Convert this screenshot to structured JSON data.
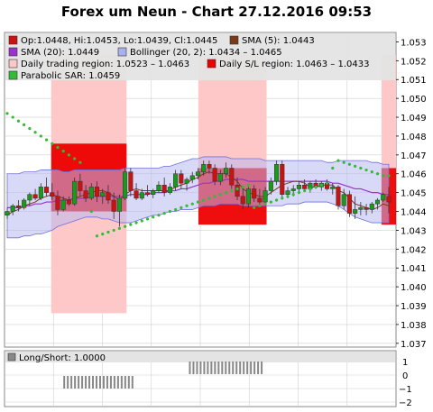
{
  "title": "Forex um Neun - Chart 27.12.2016 09:53",
  "legend": {
    "ohlc": "Op:1.0448, Hi:1.0453, Lo:1.0439, Cl:1.0445",
    "sma5": "SMA (5): 1.0443",
    "sma20": "SMA (20): 1.0449",
    "bollinger": "Bollinger (20, 2): 1.0434 – 1.0465",
    "daily_region": "Daily trading region: 1.0523 – 1.0463",
    "daily_sl": "Daily S/L region: 1.0463 – 1.0433",
    "sar": "Parabolic SAR: 1.0459"
  },
  "colors": {
    "up": "#1a9a1a",
    "down": "#cc1111",
    "sma5": "#7a3a1a",
    "sma20": "#9933cc",
    "bollinger": "#b8b8f0",
    "daily_region": "#ffc8c8",
    "daily_sl": "#ee0000",
    "sar": "#33bb33",
    "grid": "#d0d0d0",
    "short_bars": "#888888"
  },
  "sub_panel": {
    "label": "Long/Short: 1.0000",
    "ticks": [
      "1",
      "0",
      "−1",
      "−2"
    ]
  },
  "chart_data": {
    "type": "candlestick",
    "ylim": [
      1.0368,
      1.0535
    ],
    "y_ticks": [
      "1.053",
      "1.052",
      "1.051",
      "1.050",
      "1.049",
      "1.048",
      "1.047",
      "1.046",
      "1.045",
      "1.044",
      "1.043",
      "1.042",
      "1.041",
      "1.040",
      "1.039",
      "1.038",
      "1.037"
    ],
    "candles": [
      [
        1.0438,
        1.0442,
        1.0436,
        1.044
      ],
      [
        1.044,
        1.0444,
        1.0438,
        1.0443
      ],
      [
        1.0443,
        1.0446,
        1.044,
        1.0442
      ],
      [
        1.0442,
        1.0447,
        1.0441,
        1.0446
      ],
      [
        1.0446,
        1.045,
        1.0443,
        1.0449
      ],
      [
        1.0449,
        1.0452,
        1.0446,
        1.0447
      ],
      [
        1.0447,
        1.0455,
        1.0446,
        1.0453
      ],
      [
        1.0453,
        1.0458,
        1.0448,
        1.045
      ],
      [
        1.045,
        1.0455,
        1.0446,
        1.0448
      ],
      [
        1.0448,
        1.0451,
        1.0438,
        1.0441
      ],
      [
        1.0441,
        1.0448,
        1.044,
        1.0446
      ],
      [
        1.0446,
        1.0448,
        1.0443,
        1.0444
      ],
      [
        1.0444,
        1.0458,
        1.0443,
        1.0456
      ],
      [
        1.0456,
        1.046,
        1.0448,
        1.0451
      ],
      [
        1.0451,
        1.0454,
        1.0445,
        1.0447
      ],
      [
        1.0447,
        1.0455,
        1.0446,
        1.0453
      ],
      [
        1.0453,
        1.0456,
        1.0445,
        1.0448
      ],
      [
        1.0448,
        1.0452,
        1.0444,
        1.045
      ],
      [
        1.045,
        1.0454,
        1.0444,
        1.0446
      ],
      [
        1.0446,
        1.045,
        1.0436,
        1.044
      ],
      [
        1.044,
        1.0449,
        1.0432,
        1.0447
      ],
      [
        1.0447,
        1.0463,
        1.0446,
        1.0461
      ],
      [
        1.0461,
        1.0463,
        1.0448,
        1.0451
      ],
      [
        1.0451,
        1.0455,
        1.0446,
        1.0447
      ],
      [
        1.0447,
        1.0452,
        1.0446,
        1.045
      ],
      [
        1.045,
        1.0454,
        1.0448,
        1.0449
      ],
      [
        1.0449,
        1.0452,
        1.0447,
        1.0451
      ],
      [
        1.0451,
        1.0456,
        1.045,
        1.0454
      ],
      [
        1.0454,
        1.0458,
        1.0448,
        1.045
      ],
      [
        1.045,
        1.0455,
        1.0449,
        1.0453
      ],
      [
        1.0453,
        1.0462,
        1.0451,
        1.046
      ],
      [
        1.046,
        1.0462,
        1.0452,
        1.0455
      ],
      [
        1.0455,
        1.0458,
        1.0451,
        1.0457
      ],
      [
        1.0457,
        1.0461,
        1.0455,
        1.0459
      ],
      [
        1.0459,
        1.0463,
        1.0457,
        1.0461
      ],
      [
        1.0461,
        1.0467,
        1.0459,
        1.0465
      ],
      [
        1.0465,
        1.0467,
        1.046,
        1.0463
      ],
      [
        1.0463,
        1.0465,
        1.0454,
        1.0456
      ],
      [
        1.0456,
        1.0462,
        1.0454,
        1.046
      ],
      [
        1.046,
        1.0466,
        1.0458,
        1.0463
      ],
      [
        1.0463,
        1.0465,
        1.0452,
        1.0454
      ],
      [
        1.0454,
        1.0458,
        1.0446,
        1.0448
      ],
      [
        1.0448,
        1.0452,
        1.0441,
        1.0444
      ],
      [
        1.0444,
        1.0453,
        1.0442,
        1.0452
      ],
      [
        1.0452,
        1.0454,
        1.0445,
        1.0447
      ],
      [
        1.0447,
        1.0452,
        1.0442,
        1.0445
      ],
      [
        1.0445,
        1.0453,
        1.0443,
        1.0451
      ],
      [
        1.0451,
        1.0458,
        1.0449,
        1.0456
      ],
      [
        1.0456,
        1.0467,
        1.0454,
        1.0465
      ],
      [
        1.0465,
        1.0467,
        1.0447,
        1.0449
      ],
      [
        1.0449,
        1.0453,
        1.0447,
        1.0451
      ],
      [
        1.0451,
        1.0454,
        1.0448,
        1.0452
      ],
      [
        1.0452,
        1.0456,
        1.045,
        1.0454
      ],
      [
        1.0454,
        1.0457,
        1.0451,
        1.0452
      ],
      [
        1.0452,
        1.0456,
        1.045,
        1.0455
      ],
      [
        1.0455,
        1.0457,
        1.0452,
        1.0453
      ],
      [
        1.0453,
        1.0456,
        1.0451,
        1.0455
      ],
      [
        1.0455,
        1.0457,
        1.0451,
        1.0452
      ],
      [
        1.0452,
        1.0455,
        1.0449,
        1.0453
      ],
      [
        1.0453,
        1.0454,
        1.0441,
        1.0443
      ],
      [
        1.0443,
        1.0452,
        1.0441,
        1.0449
      ],
      [
        1.0449,
        1.0451,
        1.0437,
        1.0439
      ],
      [
        1.0439,
        1.0448,
        1.0436,
        1.0441
      ],
      [
        1.0441,
        1.0445,
        1.0438,
        1.0442
      ],
      [
        1.0442,
        1.0444,
        1.0438,
        1.0441
      ],
      [
        1.0441,
        1.0445,
        1.0439,
        1.0444
      ],
      [
        1.0444,
        1.0447,
        1.0441,
        1.0446
      ],
      [
        1.0446,
        1.045,
        1.0445,
        1.0449
      ],
      [
        1.0448,
        1.0453,
        1.0439,
        1.0445
      ]
    ],
    "sma5": [
      1.0438,
      1.044,
      1.0441,
      1.0443,
      1.0444,
      1.0445,
      1.0447,
      1.0448,
      1.0449,
      1.0448,
      1.0447,
      1.0446,
      1.0447,
      1.0448,
      1.0449,
      1.045,
      1.0451,
      1.0451,
      1.045,
      1.0448,
      1.0446,
      1.0449,
      1.0451,
      1.0452,
      1.0451,
      1.0451,
      1.0451,
      1.0451,
      1.0451,
      1.0451,
      1.0453,
      1.0454,
      1.0455,
      1.0457,
      1.0458,
      1.046,
      1.0461,
      1.046,
      1.046,
      1.046,
      1.0458,
      1.0456,
      1.0452,
      1.045,
      1.0449,
      1.0448,
      1.0448,
      1.045,
      1.0452,
      1.0454,
      1.0455,
      1.0456,
      1.0456,
      1.0455,
      1.0453,
      1.0453,
      1.0454,
      1.0454,
      1.0454,
      1.0451,
      1.045,
      1.0447,
      1.0444,
      1.0443,
      1.0442,
      1.0441,
      1.0442,
      1.0444,
      1.0443
    ],
    "sma20": [
      1.0442,
      1.0442,
      1.0442,
      1.0443,
      1.0443,
      1.0444,
      1.0444,
      1.0445,
      1.0445,
      1.0446,
      1.0446,
      1.0446,
      1.0447,
      1.0447,
      1.0447,
      1.0448,
      1.0448,
      1.0448,
      1.0448,
      1.0448,
      1.0448,
      1.0448,
      1.0449,
      1.0449,
      1.0449,
      1.0449,
      1.045,
      1.045,
      1.045,
      1.0451,
      1.0451,
      1.0452,
      1.0452,
      1.0453,
      1.0454,
      1.0455,
      1.0455,
      1.0456,
      1.0456,
      1.0457,
      1.0457,
      1.0457,
      1.0457,
      1.0456,
      1.0456,
      1.0456,
      1.0456,
      1.0456,
      1.0456,
      1.0456,
      1.0456,
      1.0456,
      1.0456,
      1.0456,
      1.0456,
      1.0456,
      1.0456,
      1.0456,
      1.0455,
      1.0455,
      1.0454,
      1.0453,
      1.0452,
      1.0452,
      1.0451,
      1.045,
      1.045,
      1.0449,
      1.0449
    ],
    "bb_upper": [
      1.046,
      1.046,
      1.046,
      1.0461,
      1.0461,
      1.0461,
      1.0462,
      1.0462,
      1.0462,
      1.0462,
      1.0461,
      1.0461,
      1.0462,
      1.0462,
      1.0462,
      1.0462,
      1.0462,
      1.0462,
      1.0462,
      1.0462,
      1.0462,
      1.0463,
      1.0463,
      1.0463,
      1.0463,
      1.0463,
      1.0463,
      1.0463,
      1.0464,
      1.0464,
      1.0465,
      1.0466,
      1.0467,
      1.0468,
      1.0468,
      1.0469,
      1.0469,
      1.0469,
      1.0469,
      1.0469,
      1.0468,
      1.0468,
      1.0468,
      1.0468,
      1.0468,
      1.0468,
      1.0467,
      1.0467,
      1.0467,
      1.0467,
      1.0467,
      1.0467,
      1.0467,
      1.0467,
      1.0467,
      1.0467,
      1.0467,
      1.0466,
      1.0466,
      1.0467,
      1.0467,
      1.0467,
      1.0467,
      1.0467,
      1.0467,
      1.0466,
      1.0466,
      1.0465,
      1.0465
    ],
    "bb_lower": [
      1.0426,
      1.0426,
      1.0426,
      1.0427,
      1.0427,
      1.0428,
      1.0428,
      1.0429,
      1.043,
      1.0432,
      1.0433,
      1.0434,
      1.0435,
      1.0436,
      1.0437,
      1.0437,
      1.0437,
      1.0436,
      1.0436,
      1.0435,
      1.0434,
      1.0434,
      1.0434,
      1.0435,
      1.0436,
      1.0437,
      1.0438,
      1.0438,
      1.0439,
      1.044,
      1.044,
      1.0441,
      1.0441,
      1.0441,
      1.0442,
      1.0443,
      1.0443,
      1.0443,
      1.0444,
      1.0444,
      1.0444,
      1.0444,
      1.0443,
      1.0443,
      1.0443,
      1.0443,
      1.0443,
      1.0443,
      1.0443,
      1.0443,
      1.0444,
      1.0444,
      1.0444,
      1.0445,
      1.0445,
      1.0445,
      1.0445,
      1.0445,
      1.0444,
      1.0443,
      1.0441,
      1.0439,
      1.0437,
      1.0436,
      1.0435,
      1.0434,
      1.0434,
      1.0434,
      1.0434
    ],
    "sar": [
      1.0492,
      1.049,
      1.0488,
      1.0486,
      1.0484,
      1.0482,
      1.048,
      1.0478,
      1.0476,
      1.0474,
      1.0472,
      1.047,
      1.0468,
      1.0466,
      null,
      1.044,
      1.0427,
      1.0428,
      1.0429,
      1.043,
      1.0431,
      1.0432,
      1.0433,
      1.0434,
      1.0435,
      1.0436,
      1.0437,
      1.0438,
      1.0439,
      1.044,
      1.0441,
      1.0442,
      1.0443,
      1.0444,
      1.0445,
      1.0446,
      1.0447,
      1.0448,
      1.0449,
      1.045,
      1.0451,
      1.0452,
      1.0453,
      1.0454,
      1.0442,
      1.0443,
      1.0444,
      1.0445,
      1.0446,
      1.0447,
      1.0448,
      1.0449,
      1.045,
      1.0451,
      1.0452,
      1.0453,
      1.0454,
      1.0455,
      1.0463,
      1.0467,
      1.0466,
      1.0465,
      1.0464,
      1.0463,
      1.0462,
      1.0461,
      1.046,
      1.0459,
      1.0459
    ],
    "daily_regions": [
      {
        "from": 13,
        "to": 34,
        "high": 1.0523,
        "low": 1.0386,
        "sl_high": 1.0476,
        "sl_low": 1.044
      },
      {
        "from": 54,
        "to": 73,
        "high": 1.0523,
        "low": 1.0463,
        "sl_high": 1.0463,
        "sl_low": 1.0433
      },
      {
        "from": 105,
        "to": 112,
        "high": 1.0523,
        "low": 1.0463,
        "sl_high": 1.0463,
        "sl_low": 1.0433
      }
    ],
    "long_short": [
      0,
      0,
      0,
      0,
      0,
      0,
      0,
      0,
      0,
      0,
      0,
      0,
      0,
      0,
      0,
      0,
      -1,
      -1,
      -1,
      -1,
      -1,
      -1,
      -1,
      -1,
      -1,
      -1,
      -1,
      -1,
      -1,
      -1,
      -1,
      -1,
      -1,
      -1,
      -1,
      -1,
      0,
      0,
      0,
      0,
      0,
      0,
      0,
      0,
      0,
      0,
      0,
      0,
      0,
      0,
      0,
      1,
      1,
      1,
      1,
      1,
      1,
      1,
      1,
      1,
      1,
      1,
      1,
      1,
      1,
      1,
      1,
      1,
      1,
      1,
      1,
      1,
      0,
      0,
      0,
      0,
      0,
      0
    ]
  }
}
